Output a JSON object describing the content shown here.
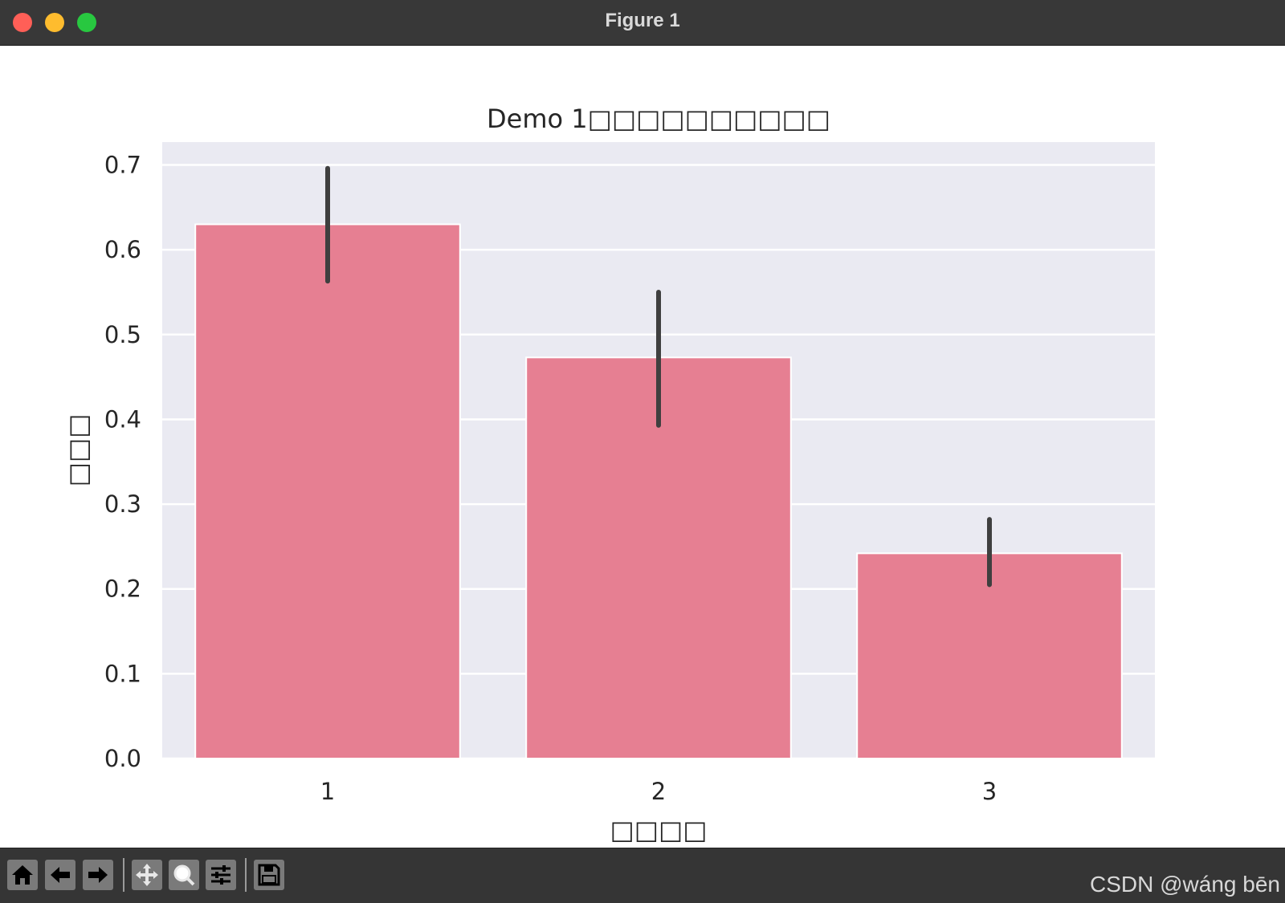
{
  "window": {
    "title": "Figure 1"
  },
  "toolbar": {
    "buttons": [
      {
        "name": "home-button",
        "icon": "home-icon"
      },
      {
        "name": "back-button",
        "icon": "arrow-left-icon"
      },
      {
        "name": "forward-button",
        "icon": "arrow-right-icon"
      },
      {
        "name": "pan-button",
        "icon": "pan-icon"
      },
      {
        "name": "zoom-button",
        "icon": "zoom-icon"
      },
      {
        "name": "configure-subplots-button",
        "icon": "sliders-icon"
      },
      {
        "name": "save-button",
        "icon": "save-icon"
      }
    ]
  },
  "watermark": "CSDN @wáng bēn",
  "colors": {
    "bar": "#e67f92",
    "plot_bg": "#eaeaf2",
    "grid": "#ffffff",
    "errorbar": "#3f3f3f",
    "text": "#262626"
  },
  "chart_data": {
    "type": "bar",
    "title": "Demo 1□□□□□□□□□□",
    "xlabel": "□□□□",
    "ylabel": "□□□",
    "categories": [
      "1",
      "2",
      "3"
    ],
    "values": [
      0.63,
      0.473,
      0.242
    ],
    "error_low": [
      0.563,
      0.393,
      0.205
    ],
    "error_high": [
      0.696,
      0.55,
      0.282
    ],
    "ylim": [
      0,
      0.727
    ],
    "yticks": [
      "0.0",
      "0.1",
      "0.2",
      "0.3",
      "0.4",
      "0.5",
      "0.6",
      "0.7"
    ],
    "grid": true
  }
}
